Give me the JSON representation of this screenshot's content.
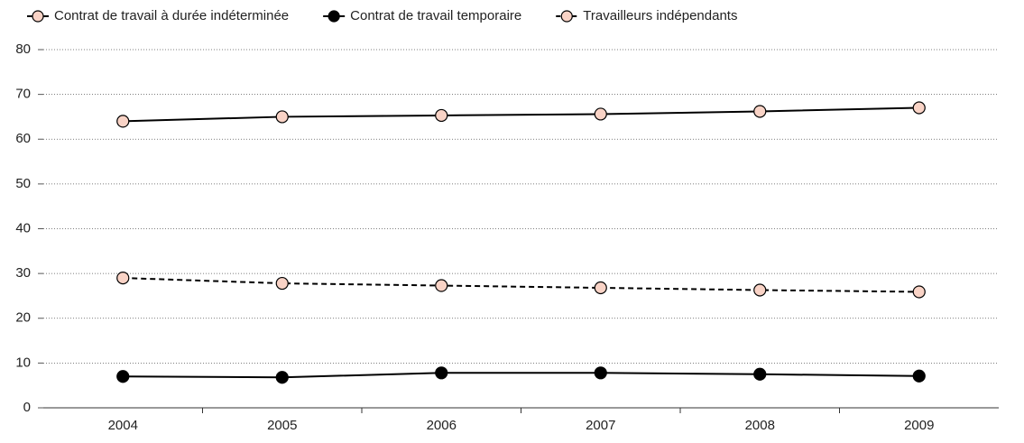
{
  "chart_data": {
    "type": "line",
    "categories": [
      "2004",
      "2005",
      "2006",
      "2007",
      "2008",
      "2009"
    ],
    "series": [
      {
        "name": "Contrat de travail à durée indéterminée",
        "color": "#000000",
        "marker_fill": "#f9d3c6",
        "dash": false,
        "values": [
          64,
          65,
          65.3,
          65.6,
          66.2,
          67
        ]
      },
      {
        "name": "Contrat de travail temporaire",
        "color": "#000000",
        "marker_fill": "#000000",
        "dash": false,
        "values": [
          7,
          6.8,
          7.8,
          7.8,
          7.5,
          7.1
        ]
      },
      {
        "name": "Travailleurs indépendants",
        "color": "#000000",
        "marker_fill": "#f9d3c6",
        "dash": true,
        "values": [
          29,
          27.8,
          27.3,
          26.8,
          26.3,
          25.9
        ]
      }
    ],
    "ylim": [
      0,
      80
    ],
    "yticks": [
      0,
      10,
      20,
      30,
      40,
      50,
      60,
      70,
      80
    ],
    "grid": true,
    "legend": "top"
  }
}
